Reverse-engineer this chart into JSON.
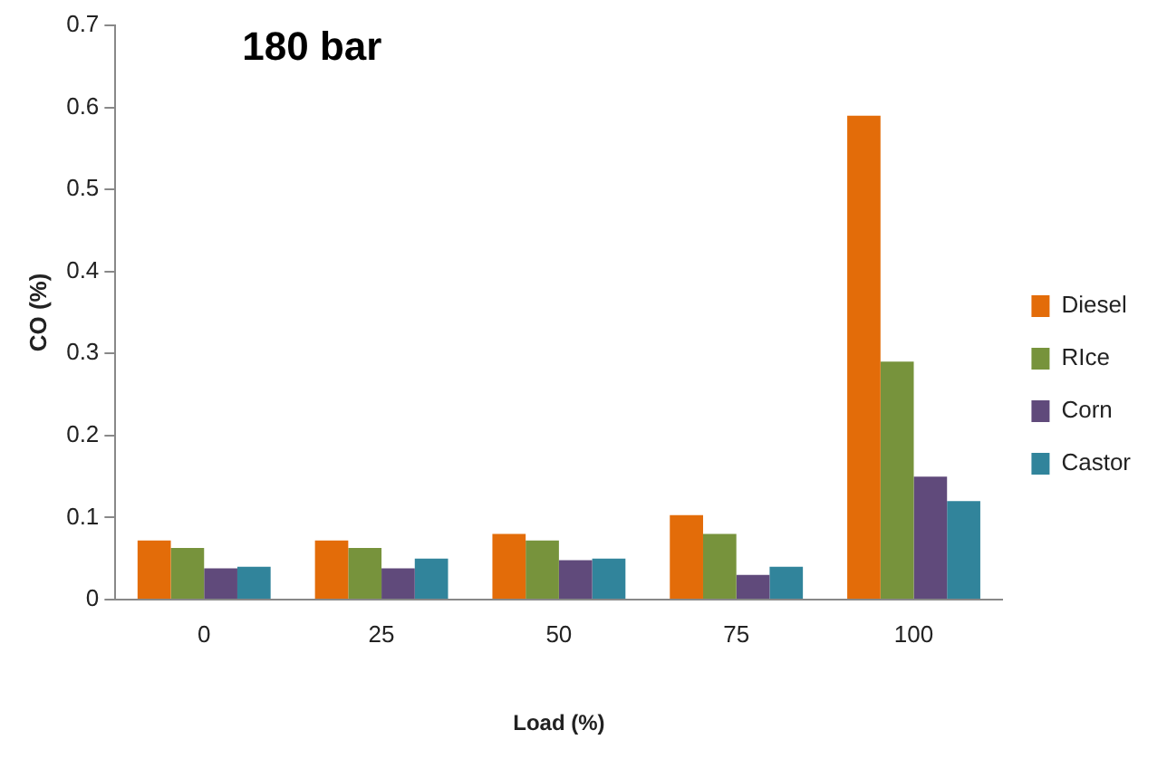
{
  "chart_data": {
    "type": "bar",
    "title": "180 bar",
    "xlabel": "Load (%)",
    "ylabel": "CO (%)",
    "categories": [
      "0",
      "25",
      "50",
      "75",
      "100"
    ],
    "series": [
      {
        "name": "Diesel",
        "color": "#e36c09",
        "values": [
          0.072,
          0.072,
          0.08,
          0.103,
          0.59
        ]
      },
      {
        "name": "RIce",
        "color": "#77933c",
        "values": [
          0.063,
          0.063,
          0.072,
          0.08,
          0.29
        ]
      },
      {
        "name": "Corn",
        "color": "#604a7b",
        "values": [
          0.038,
          0.038,
          0.048,
          0.03,
          0.15
        ]
      },
      {
        "name": "Castor",
        "color": "#31849b",
        "values": [
          0.04,
          0.05,
          0.05,
          0.04,
          0.12
        ]
      }
    ],
    "ylim": [
      0,
      0.7
    ],
    "yticks": [
      0,
      0.1,
      0.2,
      0.3,
      0.4,
      0.5,
      0.6,
      0.7
    ],
    "grid": false,
    "legend": "right"
  }
}
